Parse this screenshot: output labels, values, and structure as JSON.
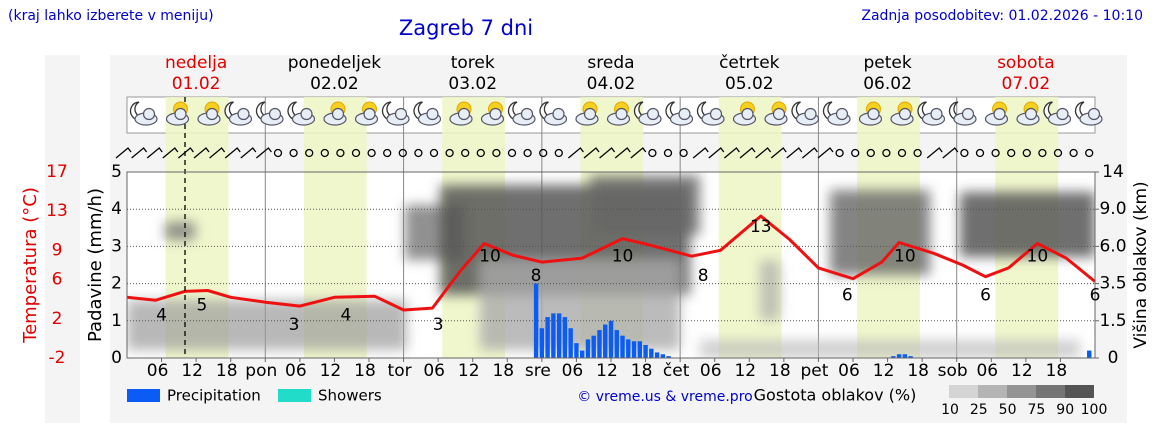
{
  "header": {
    "note": "(kraj lahko izberete v meniju)",
    "updated": "Zadnja posodobitev: 01.02.2026 - 10:10"
  },
  "chart_data": {
    "type": "line",
    "title": "Zagreb 7 dni",
    "days": [
      {
        "name": "nedelja",
        "date": "01.02",
        "color": "#e00000"
      },
      {
        "name": "ponedeljek",
        "date": "02.02",
        "color": "#000000"
      },
      {
        "name": "torek",
        "date": "03.02",
        "color": "#000000"
      },
      {
        "name": "sreda",
        "date": "04.02",
        "color": "#000000"
      },
      {
        "name": "četrtek",
        "date": "05.02",
        "color": "#000000"
      },
      {
        "name": "petek",
        "date": "06.02",
        "color": "#000000"
      },
      {
        "name": "sobota",
        "date": "07.02",
        "color": "#e00000"
      }
    ],
    "xlim": [
      0,
      168
    ],
    "xticks": [
      {
        "value": 6,
        "label": "06"
      },
      12,
      18,
      {
        "value": 24,
        "label": "pon"
      },
      {
        "value": 30,
        "label": "06"
      },
      {
        "value": 36,
        "label": "12"
      },
      {
        "value": 42,
        "label": "18"
      },
      {
        "value": 48,
        "label": "tor"
      },
      {
        "value": 54,
        "label": "06"
      },
      {
        "value": 60,
        "label": "12"
      },
      {
        "value": 66,
        "label": "18"
      },
      {
        "value": 72,
        "label": "sre"
      },
      {
        "value": 78,
        "label": "06"
      },
      {
        "value": 84,
        "label": "12"
      },
      {
        "value": 90,
        "label": "18"
      },
      {
        "value": 96,
        "label": "čet"
      },
      {
        "value": 102,
        "label": "06"
      },
      {
        "value": 108,
        "label": "12"
      },
      {
        "value": 114,
        "label": "18"
      },
      {
        "value": 120,
        "label": "pet"
      },
      {
        "value": 126,
        "label": "06"
      },
      {
        "value": 132,
        "label": "12"
      },
      {
        "value": 138,
        "label": "18"
      },
      {
        "value": 144,
        "label": "sob"
      },
      {
        "value": 150,
        "label": "06"
      },
      {
        "value": 156,
        "label": "12"
      },
      {
        "value": 162,
        "label": "18"
      }
    ],
    "ylabel": "Padavine (mm/h)",
    "ylim": [
      0,
      5
    ],
    "yticks": [
      0,
      1,
      2,
      3,
      4,
      5
    ],
    "grid": true,
    "y2label": "Višina oblakov (km)",
    "y2ticks": [
      0,
      1.5,
      3.5,
      {
        "value": 6,
        "label": "6.0"
      },
      {
        "value": 9,
        "label": "9.0"
      },
      14
    ],
    "y3label": "Temperatura (°C)",
    "y3lim": [
      -2,
      17
    ],
    "y3ticks": [
      -2,
      2,
      6,
      9,
      13,
      17
    ],
    "y3color": "#e00000",
    "temperature": {
      "color": "#ee1111",
      "x": [
        0,
        5,
        10,
        14,
        18,
        24,
        30,
        36,
        43,
        48,
        53,
        58,
        62,
        67,
        72,
        79,
        86,
        91,
        98,
        103,
        110,
        115,
        120,
        126,
        131,
        134,
        140,
        145,
        149,
        153,
        158,
        163,
        168
      ],
      "values": [
        4.2,
        3.9,
        4.8,
        4.9,
        4.2,
        3.7,
        3.3,
        4.2,
        4.3,
        2.9,
        3.1,
        7.0,
        9.7,
        8.5,
        7.8,
        8.2,
        10.2,
        9.5,
        8.4,
        9.0,
        12.5,
        10.1,
        7.2,
        6.1,
        7.8,
        9.8,
        8.7,
        7.5,
        6.3,
        7.2,
        9.7,
        8.2,
        5.8
      ]
    },
    "temp_labels": {
      "x": [
        6,
        13,
        29,
        38,
        54,
        63,
        71,
        86,
        100,
        110,
        125,
        135,
        149,
        158,
        168
      ],
      "values": [
        4,
        5,
        3,
        4,
        3,
        10,
        8,
        10,
        8,
        13,
        6,
        10,
        6,
        10,
        6
      ]
    },
    "series": [
      {
        "name": "Precipitation",
        "color": "#0a5cf5",
        "x": [
          71,
          72,
          73,
          74,
          75,
          76,
          77,
          78,
          79,
          80,
          81,
          82,
          83,
          84,
          85,
          86,
          87,
          88,
          89,
          90,
          91,
          92,
          93,
          94,
          133,
          134,
          135,
          136,
          167
        ],
        "values": [
          2.0,
          0.8,
          1.1,
          1.2,
          1.2,
          1.1,
          0.8,
          0.4,
          0.2,
          0.5,
          0.6,
          0.75,
          0.9,
          1.0,
          0.75,
          0.6,
          0.5,
          0.45,
          0.45,
          0.35,
          0.25,
          0.15,
          0.1,
          0.05,
          0.05,
          0.1,
          0.1,
          0.05,
          0.2
        ]
      },
      {
        "name": "Showers",
        "color": "#20dcc8",
        "x": [],
        "values": []
      }
    ],
    "cloud_scale": {
      "label": "Gostota oblakov (%)",
      "ticks": [
        10,
        25,
        50,
        75,
        90,
        100
      ],
      "colors": [
        "#d4d4d4",
        "#b4b4b4",
        "#949494",
        "#747474",
        "#545454"
      ]
    }
  },
  "footer": {
    "copyright": "© vreme.us & vreme.pro"
  }
}
